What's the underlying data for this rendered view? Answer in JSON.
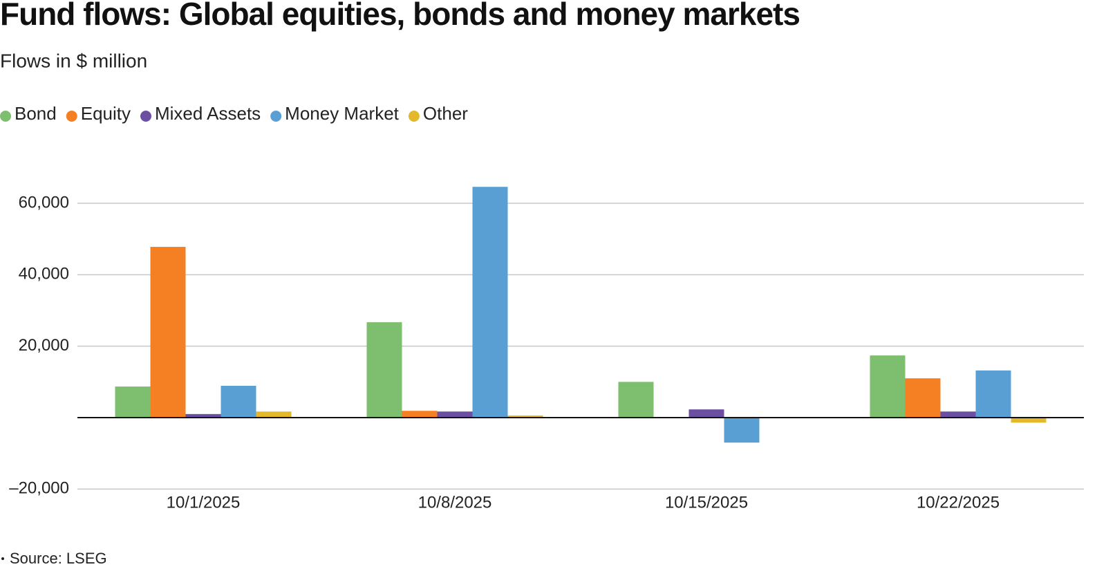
{
  "chart_data": {
    "type": "bar",
    "title": "Fund flows: Global equities, bonds and money markets",
    "subtitle": "Flows in $ million",
    "source": "Source: LSEG",
    "categories": [
      "10/1/2025",
      "10/8/2025",
      "10/15/2025",
      "10/22/2025"
    ],
    "series": [
      {
        "name": "Bond",
        "color": "#7dbf6e",
        "values": [
          8700,
          26700,
          10000,
          17400
        ]
      },
      {
        "name": "Equity",
        "color": "#f58023",
        "values": [
          47800,
          1900,
          0,
          11000
        ]
      },
      {
        "name": "Mixed Assets",
        "color": "#6b4fa0",
        "values": [
          1000,
          1700,
          2300,
          1700
        ]
      },
      {
        "name": "Money Market",
        "color": "#5a9fd4",
        "values": [
          8900,
          64600,
          -7000,
          13200
        ]
      },
      {
        "name": "Other",
        "color": "#e3b92b",
        "values": [
          1700,
          600,
          0,
          -1400
        ]
      }
    ],
    "ylim": [
      -20000,
      70000
    ],
    "yticks": [
      {
        "value": -20000,
        "label": "–20,000"
      },
      {
        "value": 20000,
        "label": "20,000"
      },
      {
        "value": 40000,
        "label": "40,000"
      },
      {
        "value": 60000,
        "label": "60,000"
      }
    ],
    "grid": true,
    "legend": "top"
  }
}
